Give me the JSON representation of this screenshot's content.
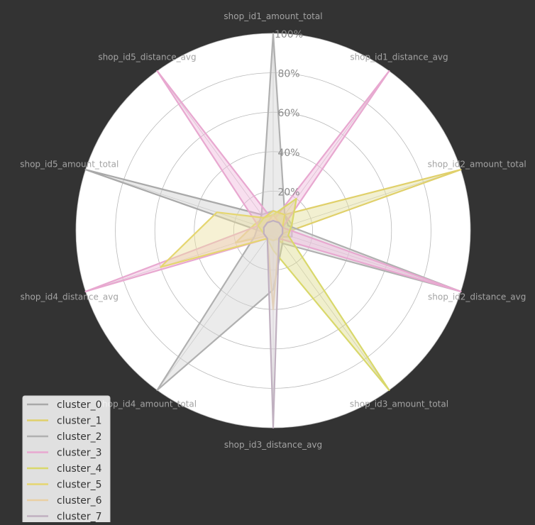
{
  "chart_data": {
    "type": "radar",
    "axes": [
      "shop_id1_amount_total",
      "shop_id1_distance_avg",
      "shop_id2_amount_total",
      "shop_id2_distance_avg",
      "shop_id3_amount_total",
      "shop_id3_distance_avg",
      "shop_id4_amount_total",
      "shop_id4_distance_avg",
      "shop_id5_amount_total",
      "shop_id5_distance_avg"
    ],
    "r_ticks": [
      20,
      40,
      60,
      80,
      100
    ],
    "r_tick_labels": [
      "20%",
      "40%",
      "60%",
      "80%",
      "100%"
    ],
    "rlim": [
      0,
      100
    ],
    "grid": true,
    "legend_position": "lower-left",
    "series": [
      {
        "name": "cluster_0",
        "color": "#a9a9a9",
        "fill": "#cfcfcf",
        "values": [
          10,
          10,
          10,
          10,
          4,
          5,
          4,
          4,
          100,
          10
        ]
      },
      {
        "name": "cluster_1",
        "color": "#e0d06a",
        "fill": "#e3dd9a",
        "values": [
          8,
          10,
          100,
          5,
          8,
          3,
          3,
          20,
          10,
          8
        ]
      },
      {
        "name": "cluster_2",
        "color": "#b0b0b0",
        "fill": "#d3d3d3",
        "values": [
          100,
          10,
          8,
          100,
          8,
          30,
          100,
          10,
          8,
          10
        ]
      },
      {
        "name": "cluster_3",
        "color": "#e8a8d0",
        "fill": "#f0b9dc",
        "values": [
          5,
          100,
          5,
          100,
          5,
          5,
          5,
          100,
          8,
          100
        ]
      },
      {
        "name": "cluster_4",
        "color": "#d9d86b",
        "fill": "#dddc8e",
        "values": [
          8,
          20,
          10,
          8,
          100,
          10,
          5,
          5,
          8,
          8
        ]
      },
      {
        "name": "cluster_5",
        "color": "#e5d670",
        "fill": "#ece0a0",
        "values": [
          10,
          10,
          5,
          5,
          5,
          5,
          5,
          60,
          30,
          8
        ]
      },
      {
        "name": "cluster_6",
        "color": "#e9cfa3",
        "fill": "#efdcb9",
        "values": [
          8,
          5,
          5,
          5,
          5,
          40,
          5,
          5,
          5,
          5
        ]
      },
      {
        "name": "cluster_7",
        "color": "#c0b0c0",
        "fill": "#d9d2d9",
        "values": [
          5,
          5,
          5,
          5,
          5,
          100,
          5,
          5,
          5,
          5
        ]
      }
    ]
  }
}
